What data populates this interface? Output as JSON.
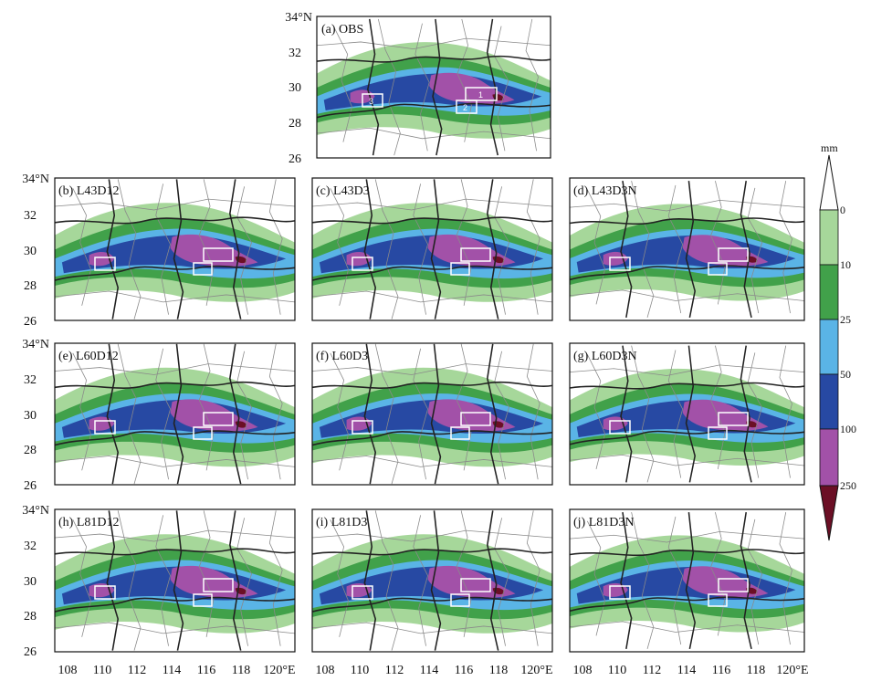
{
  "colors": {
    "bin_0_10": "#a6d79a",
    "bin_10_25": "#41a14a",
    "bin_25_50": "#5ab4e6",
    "bin_50_100": "#2749a3",
    "bin_100_250": "#a251a8",
    "bin_250_plus": "#6b0f25",
    "province_line": "#222222",
    "county_line": "#8a8a8a"
  },
  "colorbar": {
    "unit": "mm",
    "levels": [
      "0",
      "10",
      "25",
      "50",
      "100",
      "250"
    ]
  },
  "axes": {
    "lat_ticks": [
      "34°N",
      "32",
      "30",
      "28",
      "26"
    ],
    "lon_ticks": [
      "108",
      "110",
      "112",
      "114",
      "116",
      "118",
      "120°E"
    ]
  },
  "panels": [
    {
      "id": "a",
      "label": "(a) OBS"
    },
    {
      "id": "b",
      "label": "(b) L43D12"
    },
    {
      "id": "c",
      "label": "(c) L43D3"
    },
    {
      "id": "d",
      "label": "(d) L43D3N"
    },
    {
      "id": "e",
      "label": "(e) L60D12"
    },
    {
      "id": "f",
      "label": "(f) L60D3"
    },
    {
      "id": "g",
      "label": "(g) L60D3N"
    },
    {
      "id": "h",
      "label": "(h) L81D12"
    },
    {
      "id": "i",
      "label": "(i) L81D3"
    },
    {
      "id": "j",
      "label": "(j) L81D3N"
    }
  ],
  "boxes": [
    "1",
    "2",
    "3"
  ]
}
